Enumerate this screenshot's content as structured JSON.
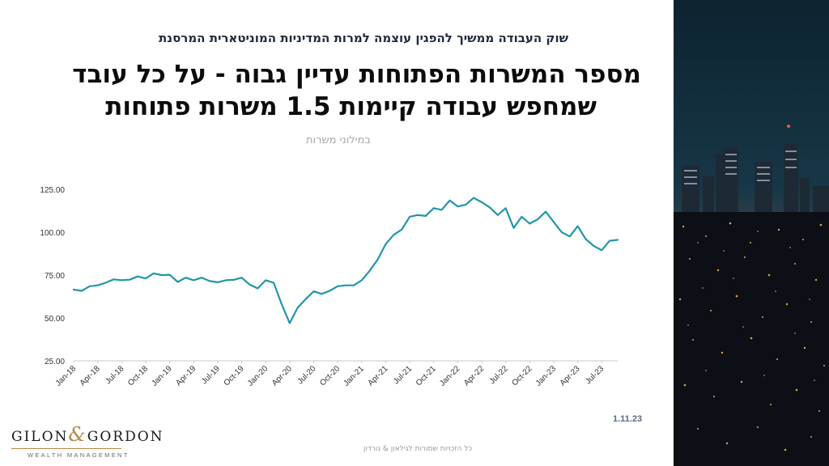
{
  "slide": {
    "subtitle": "שוק העבודה ממשיך להפגין עוצמה למרות המדיניות המוניטארית המרסנת",
    "title_line1": "מספר המשרות הפתוחות עדיין גבוה - על כל עובד",
    "title_line2": "שמחפש עבודה קיימות 1.5 משרות פתוחות",
    "date": "1.11.23",
    "footer": "כל הזכויות שמורות לגילאון & גורדון"
  },
  "logo": {
    "word1": "GILON",
    "amp": "&",
    "word2": "GORDON",
    "tagline": "WEALTH MANAGEMENT"
  },
  "colors": {
    "line": "#2097a8",
    "axis": "#c8c8c8",
    "tick_text": "#333333"
  },
  "chart_data": {
    "type": "line",
    "title": "",
    "ylabel": "במילוני משרות",
    "xlabel": "",
    "ylim": [
      25,
      125
    ],
    "yticks": [
      "125.00",
      "100.00",
      "75.00",
      "50.00",
      "25.00"
    ],
    "ytick_values": [
      125,
      100,
      75,
      50,
      25
    ],
    "x_tick_labels": [
      "Jan-18",
      "Apr-18",
      "Jul-18",
      "Oct-18",
      "Jan-19",
      "Apr-19",
      "Jul-19",
      "Oct-19",
      "Jan-20",
      "Apr-20",
      "Jul-20",
      "Oct-20",
      "Jan-21",
      "Apr-21",
      "Jul-21",
      "Oct-21",
      "Jan-22",
      "Apr-22",
      "Jul-22",
      "Oct-22",
      "Jan-23",
      "Apr-23",
      "Jul-23"
    ],
    "grid": false,
    "x_start": "Jan-18",
    "frequency": "monthly",
    "series": [
      {
        "values": [
          66.5,
          65.8,
          68.5,
          69.0,
          70.5,
          72.5,
          72.0,
          72.3,
          74.2,
          73.0,
          76.0,
          75.0,
          75.2,
          71.0,
          73.5,
          72.0,
          73.5,
          71.5,
          70.8,
          72.0,
          72.2,
          73.5,
          69.5,
          67.2,
          72.0,
          70.5,
          58.0,
          47.0,
          56.0,
          61.0,
          65.5,
          64.0,
          65.8,
          68.5,
          69.0,
          69.0,
          72.0,
          77.5,
          84.0,
          93.0,
          98.5,
          101.5,
          109.0,
          110.0,
          109.5,
          114.0,
          113.0,
          118.5,
          115.0,
          116.0,
          120.0,
          117.5,
          114.5,
          110.0,
          114.0,
          102.5,
          109.0,
          105.0,
          107.5,
          112.0,
          106.0,
          100.0,
          97.5,
          103.5,
          96.0,
          92.0,
          89.5,
          95.0,
          95.5
        ]
      }
    ]
  }
}
